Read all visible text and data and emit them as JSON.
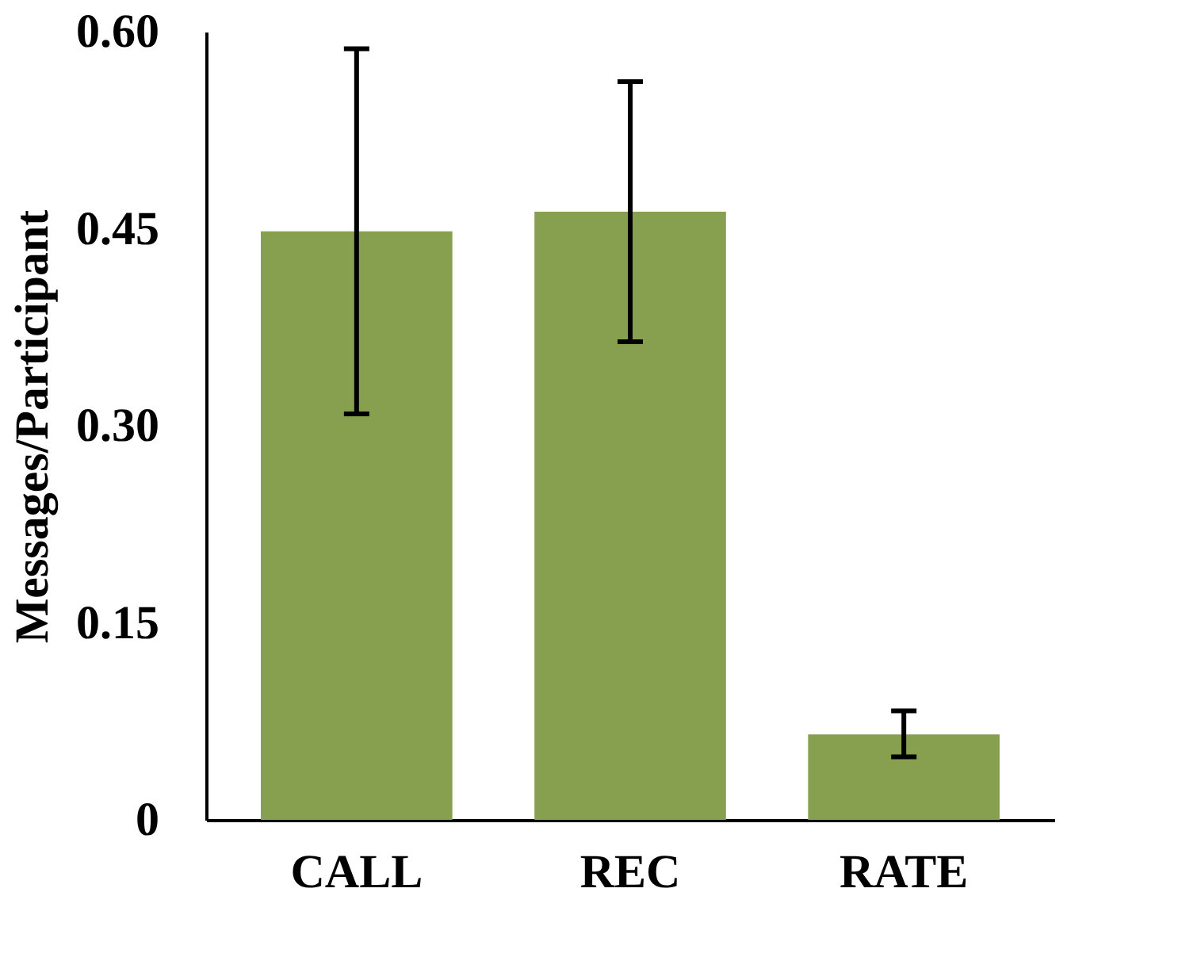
{
  "chart_data": {
    "type": "bar",
    "ylabel": "Messages/Participant",
    "categories": [
      "CALL",
      "REC",
      "RATE"
    ],
    "values": [
      0.448,
      0.463,
      0.065
    ],
    "color": "#86a04f",
    "errors": [
      [
        0.309,
        0.587
      ],
      [
        0.364,
        0.562
      ],
      [
        0.048,
        0.083
      ]
    ],
    "ylim": [
      0,
      0.6
    ],
    "yticks": [
      0,
      0.15,
      {
        "value": 0.3,
        "label": "0.30"
      },
      0.45,
      {
        "value": 0.6,
        "label": "0.60"
      }
    ],
    "grid": false,
    "legend": false
  }
}
